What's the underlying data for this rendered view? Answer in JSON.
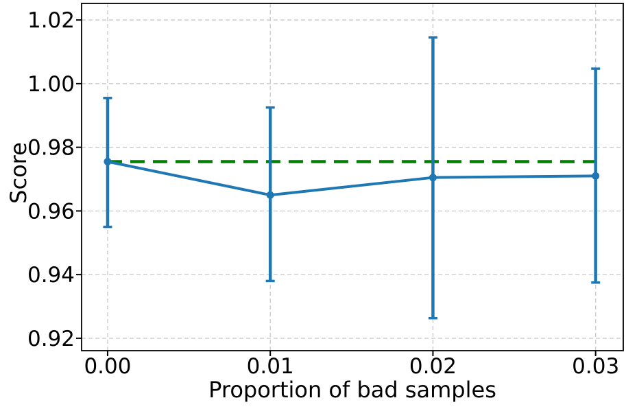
{
  "chart_data": {
    "type": "line",
    "title": "",
    "xlabel": "Proportion of bad samples",
    "ylabel": "Score",
    "x": [
      0.0,
      0.01,
      0.02,
      0.03
    ],
    "series": [
      {
        "name": "score-vs-bad-sample-proportion",
        "values": [
          0.9755,
          0.965,
          0.9705,
          0.971
        ],
        "err_low": [
          0.955,
          0.938,
          0.9263,
          0.9375
        ],
        "err_high": [
          0.9955,
          0.9925,
          1.0145,
          1.0047
        ],
        "color": "#1f77b4",
        "marker": "circle"
      }
    ],
    "baseline": {
      "name": "reference-score-dashed-line",
      "value": 0.9755,
      "x_start": 0.0,
      "x_end": 0.03,
      "color": "#008000",
      "style": "dashed"
    },
    "xticks": {
      "values": [
        0.0,
        0.01,
        0.02,
        0.03
      ],
      "labels": [
        "0.00",
        "0.01",
        "0.02",
        "0.03"
      ]
    },
    "yticks": {
      "values": [
        0.92,
        0.94,
        0.96,
        0.98,
        1.0,
        1.02
      ],
      "labels": [
        "0.92",
        "0.94",
        "0.96",
        "0.98",
        "1.00",
        "1.02"
      ]
    },
    "xlim": [
      -0.0016,
      0.0317
    ],
    "ylim": [
      0.9161,
      1.0252
    ],
    "grid": true,
    "legend_position": "none",
    "colors": {
      "line": "#1f77b4",
      "baseline": "#008000",
      "grid": "#cccccc",
      "spine": "#1a1a1a",
      "tick": "#000000",
      "background": "#ffffff"
    }
  }
}
